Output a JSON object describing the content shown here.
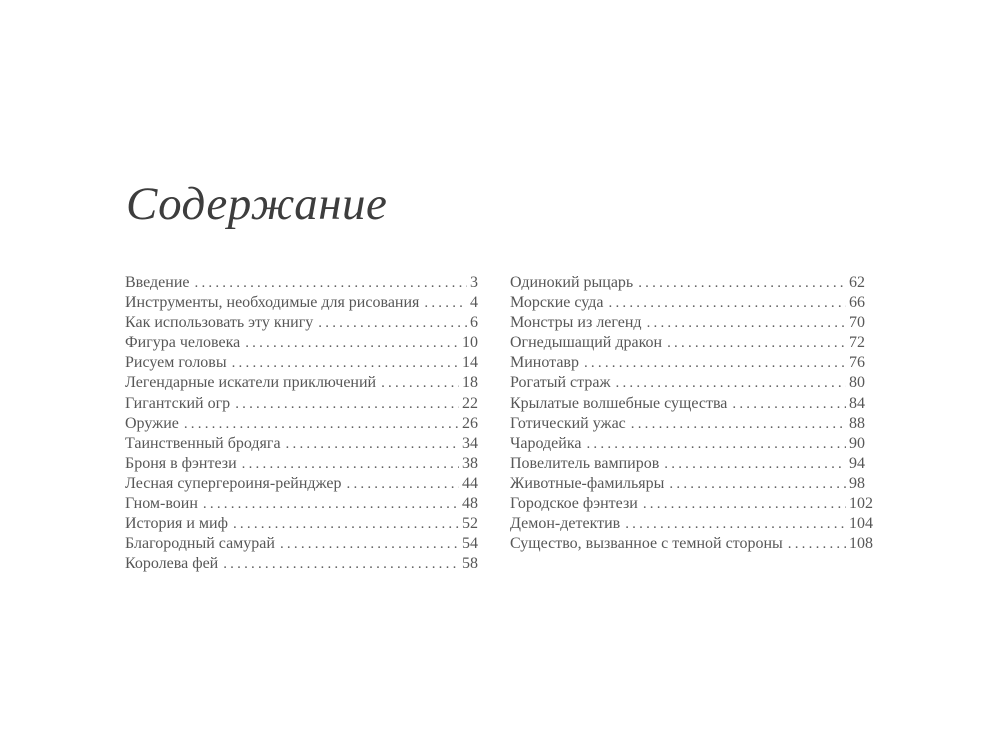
{
  "page": {
    "title": "Содержание"
  },
  "colors": {
    "background": "#ffffff",
    "title_text": "#3d3d3d",
    "body_text": "#575757"
  },
  "toc": {
    "left_entries": [
      {
        "label": "Введение",
        "page": "3"
      },
      {
        "label": "Инструменты, необходимые для рисования",
        "page": "4"
      },
      {
        "label": "Как использовать эту книгу",
        "page": "6"
      },
      {
        "label": "Фигура человека",
        "page": "10"
      },
      {
        "label": "Рисуем головы",
        "page": "14"
      },
      {
        "label": "Легендарные искатели приключений",
        "page": "18"
      },
      {
        "label": "Гигантский огр",
        "page": "22"
      },
      {
        "label": "Оружие",
        "page": "26"
      },
      {
        "label": "Таинственный бродяга",
        "page": "34"
      },
      {
        "label": "Броня в фэнтези",
        "page": "38"
      },
      {
        "label": "Лесная супергероиня-рейнджер",
        "page": "44"
      },
      {
        "label": "Гном-воин",
        "page": "48"
      },
      {
        "label": "История и миф",
        "page": "52"
      },
      {
        "label": "Благородный самурай",
        "page": "54"
      },
      {
        "label": "Королева фей",
        "page": "58"
      }
    ],
    "right_entries": [
      {
        "label": "Одинокий рыцарь",
        "page": "62"
      },
      {
        "label": "Морские суда",
        "page": "66"
      },
      {
        "label": "Монстры из легенд",
        "page": "70"
      },
      {
        "label": "Огнедышащий дракон",
        "page": "72"
      },
      {
        "label": "Минотавр",
        "page": "76"
      },
      {
        "label": "Рогатый страж",
        "page": "80"
      },
      {
        "label": "Крылатые волшебные существа",
        "page": "84"
      },
      {
        "label": "Готический ужас",
        "page": "88"
      },
      {
        "label": "Чародейка",
        "page": "90"
      },
      {
        "label": "Повелитель вампиров",
        "page": "94"
      },
      {
        "label": "Животные-фамильяры",
        "page": "98"
      },
      {
        "label": "Городское фэнтези",
        "page": "102"
      },
      {
        "label": "Демон-детектив",
        "page": "104"
      },
      {
        "label": "Существо, вызванное с темной стороны",
        "page": "108"
      }
    ]
  }
}
